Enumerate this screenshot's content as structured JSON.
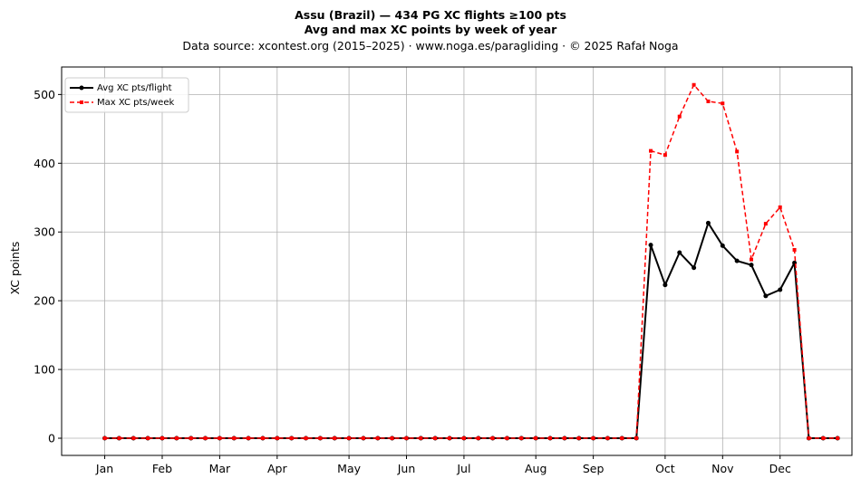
{
  "chart_data": {
    "type": "line",
    "title_lines": [
      "Assu (Brazil)  —  434 PG XC flights ≥100 pts",
      "Avg and max XC points by week of year",
      "Data source: xcontest.org (2015–2025)  ·  www.noga.es/paragliding  ·  © 2025 Rafał Noga"
    ],
    "ylabel": "XC points",
    "xlabel": "",
    "x_month_ticks": [
      {
        "label": "Jan",
        "week": 1
      },
      {
        "label": "Feb",
        "week": 5
      },
      {
        "label": "Mar",
        "week": 9
      },
      {
        "label": "Apr",
        "week": 13
      },
      {
        "label": "May",
        "week": 18
      },
      {
        "label": "Jun",
        "week": 22
      },
      {
        "label": "Jul",
        "week": 26
      },
      {
        "label": "Aug",
        "week": 31
      },
      {
        "label": "Sep",
        "week": 35
      },
      {
        "label": "Oct",
        "week": 40
      },
      {
        "label": "Nov",
        "week": 44
      },
      {
        "label": "Dec",
        "week": 48
      }
    ],
    "xlim": [
      -2,
      53
    ],
    "ylim": [
      -25,
      540
    ],
    "y_ticks": [
      0,
      100,
      200,
      300,
      400,
      500
    ],
    "grid": true,
    "legend_position": "top-left",
    "x": [
      1,
      2,
      3,
      4,
      5,
      6,
      7,
      8,
      9,
      10,
      11,
      12,
      13,
      14,
      15,
      16,
      17,
      18,
      19,
      20,
      21,
      22,
      23,
      24,
      25,
      26,
      27,
      28,
      29,
      30,
      31,
      32,
      33,
      34,
      35,
      36,
      37,
      38,
      39,
      40,
      41,
      42,
      43,
      44,
      45,
      46,
      47,
      48,
      49,
      50,
      51,
      52
    ],
    "series": [
      {
        "name": "Avg XC pts/flight",
        "color": "#000000",
        "style": "solid",
        "marker": "circle",
        "values": [
          0,
          0,
          0,
          0,
          0,
          0,
          0,
          0,
          0,
          0,
          0,
          0,
          0,
          0,
          0,
          0,
          0,
          0,
          0,
          0,
          0,
          0,
          0,
          0,
          0,
          0,
          0,
          0,
          0,
          0,
          0,
          0,
          0,
          0,
          0,
          0,
          0,
          0,
          281,
          223,
          270,
          248,
          313,
          280,
          258,
          252,
          207,
          216,
          255,
          0,
          0,
          0
        ]
      },
      {
        "name": "Max XC pts/week",
        "color": "#ff0000",
        "style": "dashed",
        "marker": "square",
        "values": [
          0,
          0,
          0,
          0,
          0,
          0,
          0,
          0,
          0,
          0,
          0,
          0,
          0,
          0,
          0,
          0,
          0,
          0,
          0,
          0,
          0,
          0,
          0,
          0,
          0,
          0,
          0,
          0,
          0,
          0,
          0,
          0,
          0,
          0,
          0,
          0,
          0,
          0,
          418,
          412,
          468,
          514,
          490,
          487,
          417,
          260,
          312,
          336,
          274,
          0,
          0,
          0
        ]
      }
    ]
  }
}
